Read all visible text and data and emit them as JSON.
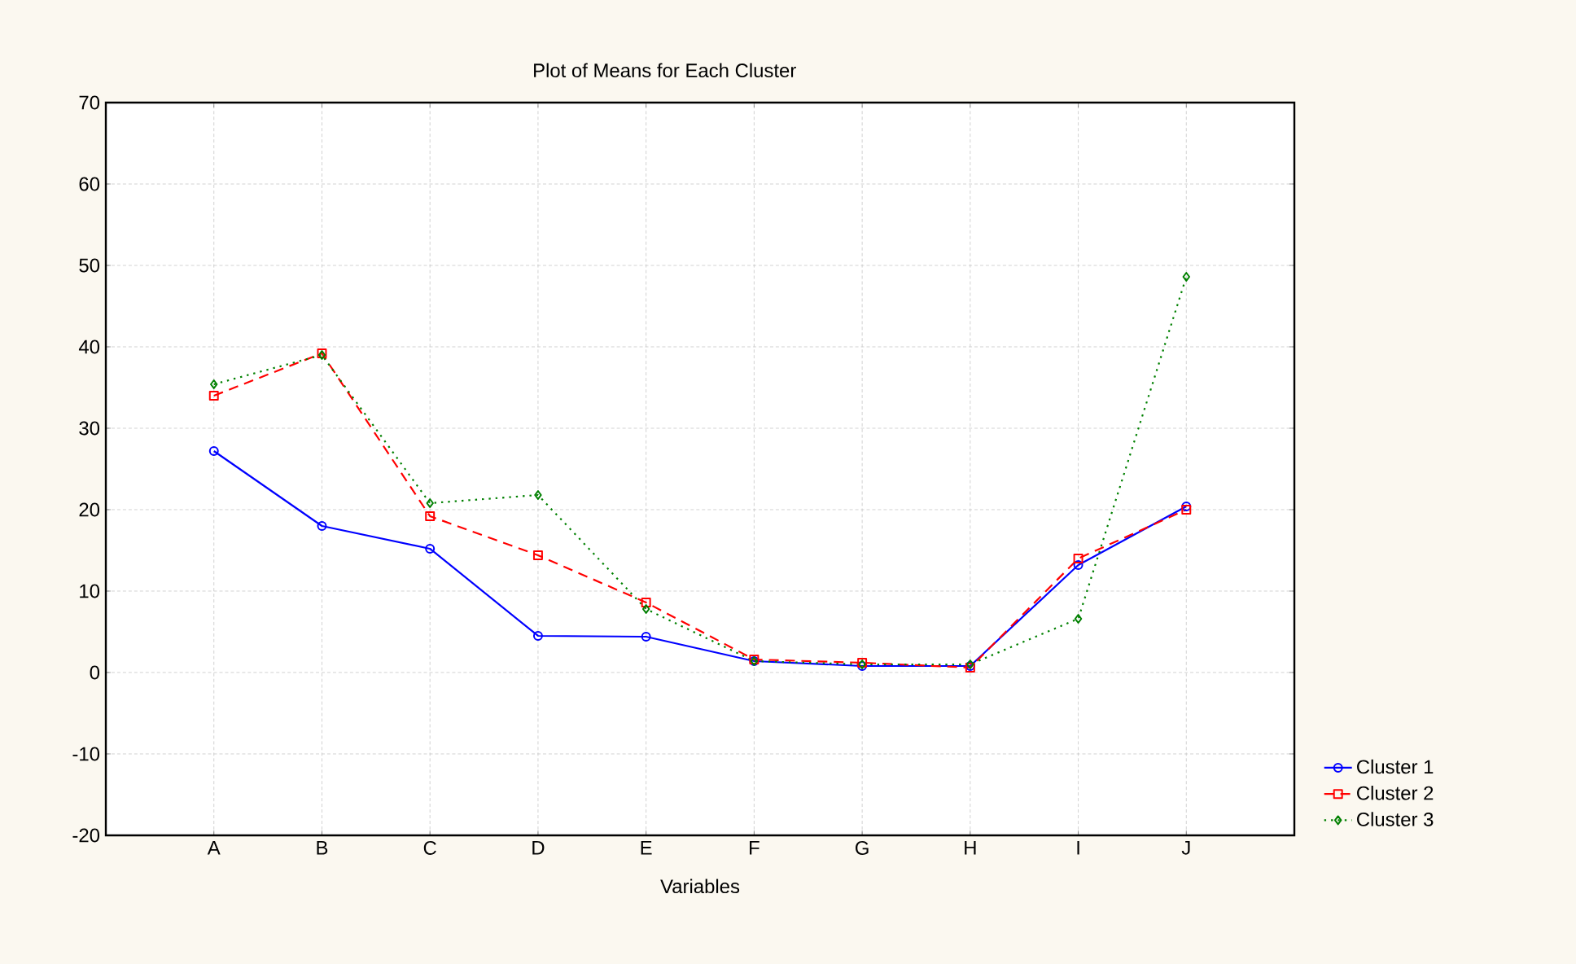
{
  "chart_data": {
    "type": "line",
    "title": "Plot of Means for Each Cluster",
    "xlabel": "Variables",
    "categories": [
      "A",
      "B",
      "C",
      "D",
      "E",
      "F",
      "G",
      "H",
      "I",
      "J"
    ],
    "series": [
      {
        "name": "Cluster 1",
        "color": "#0000ff",
        "marker": "circle",
        "line_style": "solid",
        "values": [
          27.2,
          18,
          15.2,
          4.5,
          4.4,
          1.4,
          0.8,
          0.8,
          13.2,
          20.4
        ]
      },
      {
        "name": "Cluster 2",
        "color": "#ff0000",
        "marker": "square",
        "line_style": "dashed",
        "values": [
          34,
          39.2,
          19.2,
          14.4,
          8.6,
          1.6,
          1.2,
          0.6,
          14,
          20
        ]
      },
      {
        "name": "Cluster 3",
        "color": "#008000",
        "marker": "diamond",
        "line_style": "dotted",
        "values": [
          35.4,
          39,
          20.8,
          21.8,
          7.8,
          1.4,
          1,
          1,
          6.6,
          48.6
        ]
      }
    ],
    "ylim": [
      -20,
      70
    ],
    "yticks": [
      -20,
      -10,
      0,
      10,
      20,
      30,
      40,
      50,
      60,
      70
    ],
    "grid": true,
    "legend": "right"
  }
}
